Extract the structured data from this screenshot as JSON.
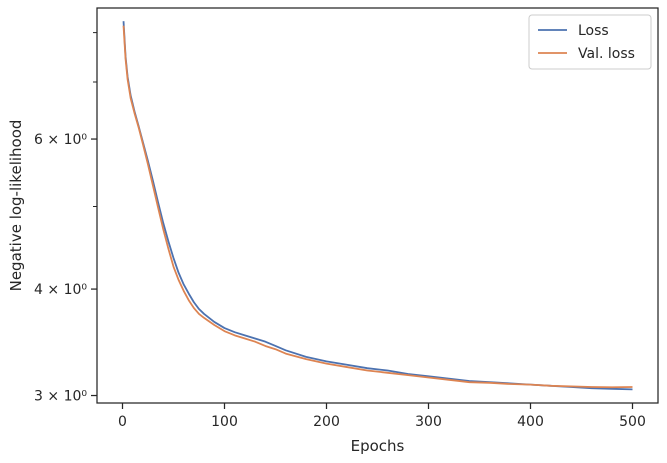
{
  "chart_data": {
    "type": "line",
    "title": "",
    "xlabel": "Epochs",
    "ylabel": "Negative log-likelihood",
    "xlim": [
      -25,
      525
    ],
    "ylim": [
      2.94,
      8.55
    ],
    "yscale": "log",
    "grid": false,
    "legend_position": "top-right",
    "x_ticks": [
      0,
      100,
      200,
      300,
      400,
      500
    ],
    "x_tick_labels": [
      "0",
      "100",
      "200",
      "300",
      "400",
      "500"
    ],
    "y_major_ticks": [
      3,
      4,
      6
    ],
    "y_major_tick_labels": [
      "3 × 10⁰",
      "4 × 10⁰",
      "6 × 10⁰"
    ],
    "y_minor_ticks": [
      5,
      7,
      8
    ],
    "series": [
      {
        "name": "Loss",
        "color": "#4c72b0",
        "x": [
          1,
          3,
          5,
          8,
          12,
          16,
          20,
          25,
          30,
          35,
          40,
          45,
          50,
          55,
          60,
          65,
          70,
          75,
          80,
          90,
          100,
          110,
          120,
          130,
          140,
          150,
          160,
          180,
          200,
          220,
          240,
          260,
          280,
          300,
          320,
          340,
          360,
          380,
          400,
          420,
          440,
          460,
          480,
          500
        ],
        "y": [
          8.25,
          7.5,
          7.1,
          6.75,
          6.45,
          6.2,
          5.95,
          5.65,
          5.35,
          5.05,
          4.78,
          4.55,
          4.35,
          4.18,
          4.05,
          3.95,
          3.86,
          3.79,
          3.74,
          3.66,
          3.6,
          3.56,
          3.53,
          3.5,
          3.47,
          3.43,
          3.39,
          3.33,
          3.29,
          3.26,
          3.23,
          3.21,
          3.18,
          3.16,
          3.14,
          3.12,
          3.11,
          3.1,
          3.09,
          3.08,
          3.07,
          3.06,
          3.055,
          3.05
        ]
      },
      {
        "name": "Val. loss",
        "color": "#dd8452",
        "x": [
          1,
          3,
          5,
          8,
          12,
          16,
          20,
          25,
          30,
          35,
          40,
          45,
          50,
          55,
          60,
          65,
          70,
          75,
          80,
          90,
          100,
          110,
          120,
          130,
          140,
          150,
          160,
          180,
          200,
          220,
          240,
          260,
          280,
          300,
          320,
          340,
          360,
          380,
          400,
          420,
          440,
          460,
          480,
          500
        ],
        "y": [
          8.15,
          7.45,
          7.05,
          6.7,
          6.42,
          6.18,
          5.92,
          5.6,
          5.28,
          4.98,
          4.7,
          4.46,
          4.25,
          4.1,
          3.98,
          3.88,
          3.8,
          3.74,
          3.7,
          3.63,
          3.57,
          3.53,
          3.5,
          3.47,
          3.43,
          3.4,
          3.36,
          3.31,
          3.27,
          3.24,
          3.21,
          3.19,
          3.17,
          3.15,
          3.13,
          3.11,
          3.105,
          3.095,
          3.09,
          3.08,
          3.075,
          3.07,
          3.068,
          3.07
        ]
      }
    ]
  }
}
